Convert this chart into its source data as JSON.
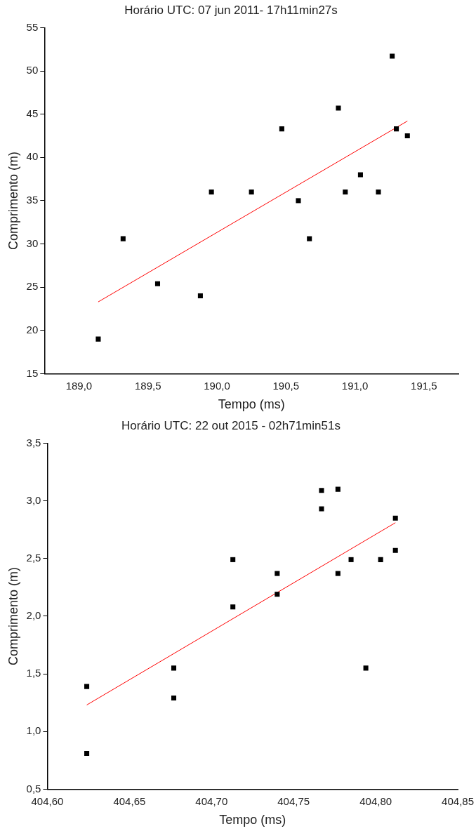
{
  "chart_data": [
    {
      "type": "scatter",
      "title": "Horário UTC: 07 jun 2011- 17h11min27s",
      "xlabel": "Tempo (ms)",
      "ylabel": "Comprimento (m)",
      "xlim": [
        188.75,
        191.75
      ],
      "ylim": [
        15,
        55
      ],
      "xticks": [
        {
          "value": 189,
          "label": "189,0"
        },
        {
          "value": 189.5,
          "label": "189,5"
        },
        {
          "value": 190,
          "label": "190,0"
        },
        {
          "value": 190.5,
          "label": "190,5"
        },
        {
          "value": 191,
          "label": "191,0"
        },
        {
          "value": 191.5,
          "label": "191,5"
        }
      ],
      "yticks": [
        15,
        20,
        25,
        30,
        35,
        40,
        45,
        50,
        55
      ],
      "grid": false,
      "legend": false,
      "series": [
        {
          "marker": "square",
          "color": "#000000",
          "x": [
            189.14,
            189.32,
            189.57,
            189.88,
            189.96,
            190.25,
            190.47,
            190.59,
            190.67,
            190.88,
            190.93,
            191.04,
            191.17,
            191.27,
            191.3,
            191.38
          ],
          "values": [
            19.0,
            30.6,
            25.4,
            24.0,
            36.0,
            36.0,
            43.3,
            35.0,
            30.6,
            45.7,
            36.0,
            38.0,
            36.0,
            51.7,
            43.3,
            42.5
          ]
        },
        {
          "type": "line",
          "marker": "none",
          "color": "#ff0000",
          "x": [
            189.14,
            191.38
          ],
          "values": [
            23.3,
            44.2
          ]
        }
      ]
    },
    {
      "type": "scatter",
      "title": "Horário UTC: 22 out 2015 - 02h71min51s",
      "xlabel": "Tempo (ms)",
      "ylabel": "Comprimento (m)",
      "xlim": [
        404.6,
        404.85
      ],
      "ylim": [
        0.5,
        3.5
      ],
      "xticks": [
        {
          "value": 404.6,
          "label": "404,60"
        },
        {
          "value": 404.65,
          "label": "404,65"
        },
        {
          "value": 404.7,
          "label": "404,70"
        },
        {
          "value": 404.75,
          "label": "404,75"
        },
        {
          "value": 404.8,
          "label": "404,80"
        },
        {
          "value": 404.85,
          "label": "404,85"
        }
      ],
      "yticks": [
        {
          "value": 0.5,
          "label": "0,5"
        },
        {
          "value": 1,
          "label": "1,0"
        },
        {
          "value": 1.5,
          "label": "1,5"
        },
        {
          "value": 2,
          "label": "2,0"
        },
        {
          "value": 2.5,
          "label": "2,5"
        },
        {
          "value": 3,
          "label": "3,0"
        },
        {
          "value": 3.5,
          "label": "3,5"
        }
      ],
      "grid": false,
      "legend": false,
      "series": [
        {
          "marker": "square",
          "color": "#000000",
          "x": [
            404.624,
            404.624,
            404.677,
            404.677,
            404.713,
            404.713,
            404.74,
            404.74,
            404.767,
            404.767,
            404.777,
            404.777,
            404.785,
            404.794,
            404.803,
            404.812,
            404.812
          ],
          "values": [
            1.39,
            0.81,
            1.55,
            1.29,
            2.49,
            2.08,
            2.37,
            2.19,
            3.09,
            2.93,
            3.1,
            2.37,
            2.49,
            1.55,
            2.49,
            2.85,
            2.57
          ]
        },
        {
          "type": "line",
          "marker": "none",
          "color": "#ff0000",
          "x": [
            404.624,
            404.812
          ],
          "values": [
            1.23,
            2.81
          ]
        }
      ]
    }
  ]
}
